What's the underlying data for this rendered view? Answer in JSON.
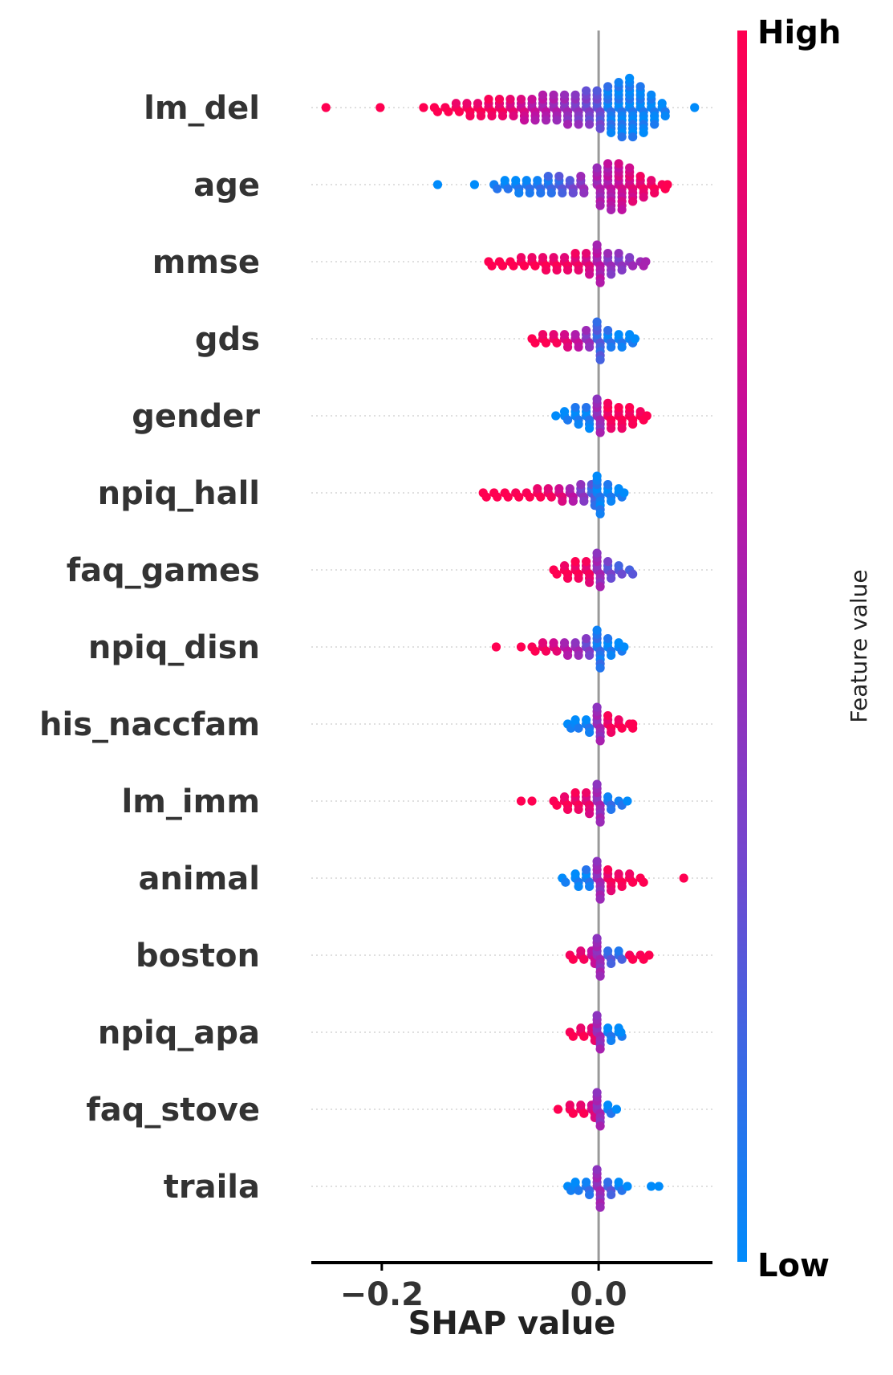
{
  "chart_data": {
    "type": "scatter",
    "subtype": "shap-beeswarm-summary",
    "xlabel": "SHAP value",
    "xlim": [
      -0.265,
      0.105
    ],
    "xticks": [
      -0.2,
      0.0
    ],
    "xtick_labels": [
      "−0.2",
      "0.0"
    ],
    "zero_line": 0.0,
    "colorbar": {
      "label": "Feature value",
      "high_label": "High",
      "low_label": "Low",
      "colors": [
        "#008bfb",
        "#7446ce",
        "#c10fa0",
        "#ff0051"
      ]
    },
    "features": [
      {
        "name": "lm_del",
        "values": [
          -0.25,
          -0.2,
          -0.16,
          -0.15,
          -0.14,
          -0.13,
          -0.12,
          -0.11,
          -0.1,
          -0.09,
          -0.08,
          -0.07,
          -0.06,
          -0.05,
          -0.04,
          -0.03,
          -0.02,
          -0.01,
          0.0,
          0.01,
          0.02,
          0.03,
          0.04,
          0.05,
          0.06,
          0.09
        ],
        "counts": [
          1,
          1,
          1,
          2,
          2,
          3,
          4,
          4,
          5,
          5,
          5,
          6,
          6,
          7,
          7,
          8,
          8,
          9,
          10,
          12,
          14,
          15,
          12,
          8,
          4,
          1
        ],
        "color_levels": [
          1.0,
          1.0,
          1.0,
          1.0,
          0.98,
          0.96,
          0.95,
          0.94,
          0.92,
          0.9,
          0.82,
          0.75,
          0.65,
          0.6,
          0.55,
          0.48,
          0.42,
          0.35,
          0.3,
          0.08,
          0.05,
          0.04,
          0.03,
          0.02,
          0.02,
          0.0
        ]
      },
      {
        "name": "age",
        "values": [
          -0.147,
          -0.113,
          -0.095,
          -0.085,
          -0.075,
          -0.065,
          -0.055,
          -0.045,
          -0.035,
          -0.025,
          -0.015,
          0.0,
          0.01,
          0.02,
          0.03,
          0.04,
          0.05,
          0.06,
          0.065
        ],
        "counts": [
          1,
          1,
          2,
          3,
          4,
          4,
          4,
          5,
          5,
          4,
          5,
          10,
          12,
          12,
          9,
          6,
          4,
          2,
          1
        ],
        "color_levels": [
          0.0,
          0.0,
          0.05,
          0.05,
          0.05,
          0.08,
          0.1,
          0.12,
          0.2,
          0.3,
          0.45,
          0.55,
          0.62,
          0.72,
          0.8,
          0.88,
          0.93,
          0.97,
          1.0
        ]
      },
      {
        "name": "mmse",
        "values": [
          -0.1,
          -0.09,
          -0.08,
          -0.07,
          -0.06,
          -0.05,
          -0.04,
          -0.03,
          -0.02,
          -0.01,
          0.0,
          0.01,
          0.02,
          0.03,
          0.04,
          0.045
        ],
        "counts": [
          2,
          2,
          2,
          3,
          3,
          4,
          4,
          4,
          5,
          6,
          10,
          6,
          5,
          3,
          2,
          1
        ],
        "color_levels": [
          1.0,
          1.0,
          1.0,
          0.98,
          0.97,
          0.95,
          0.93,
          0.9,
          0.88,
          0.8,
          0.6,
          0.45,
          0.4,
          0.45,
          0.5,
          0.55
        ]
      },
      {
        "name": "gds",
        "values": [
          -0.06,
          -0.05,
          -0.04,
          -0.03,
          -0.02,
          -0.01,
          0.0,
          0.01,
          0.02,
          0.03,
          0.035
        ],
        "counts": [
          2,
          3,
          3,
          4,
          4,
          5,
          10,
          5,
          4,
          3,
          1
        ],
        "color_levels": [
          1.0,
          0.97,
          0.92,
          0.82,
          0.65,
          0.45,
          0.2,
          0.08,
          0.04,
          0.02,
          0.0
        ]
      },
      {
        "name": "gender",
        "values": [
          -0.038,
          -0.03,
          -0.02,
          -0.01,
          0.0,
          0.01,
          0.02,
          0.03,
          0.04,
          0.046
        ],
        "counts": [
          1,
          3,
          5,
          6,
          9,
          7,
          6,
          5,
          3,
          1
        ],
        "color_levels": [
          0.0,
          0.02,
          0.03,
          0.05,
          0.5,
          0.95,
          0.97,
          0.98,
          1.0,
          1.0
        ]
      },
      {
        "name": "npiq_hall",
        "values": [
          -0.105,
          -0.095,
          -0.085,
          -0.075,
          -0.065,
          -0.055,
          -0.045,
          -0.035,
          -0.025,
          -0.015,
          -0.005,
          0.0,
          0.01,
          0.02,
          0.025
        ],
        "counts": [
          2,
          2,
          2,
          2,
          2,
          3,
          3,
          4,
          4,
          5,
          6,
          10,
          5,
          3,
          1
        ],
        "color_levels": [
          1.0,
          1.0,
          1.0,
          0.97,
          0.97,
          0.95,
          0.9,
          0.8,
          0.6,
          0.4,
          0.2,
          0.05,
          0.03,
          0.02,
          0.0
        ]
      },
      {
        "name": "faq_games",
        "values": [
          -0.04,
          -0.03,
          -0.02,
          -0.01,
          0.0,
          0.01,
          0.02,
          0.03
        ],
        "counts": [
          2,
          4,
          5,
          6,
          9,
          5,
          3,
          2
        ],
        "color_levels": [
          1.0,
          0.97,
          0.95,
          0.9,
          0.5,
          0.3,
          0.25,
          0.2
        ]
      },
      {
        "name": "npiq_disn",
        "values": [
          -0.093,
          -0.07,
          -0.06,
          -0.05,
          -0.04,
          -0.03,
          -0.02,
          -0.01,
          0.0,
          0.01,
          0.02,
          0.025
        ],
        "counts": [
          1,
          1,
          2,
          3,
          3,
          4,
          4,
          5,
          10,
          5,
          3,
          1
        ],
        "color_levels": [
          1.0,
          1.0,
          0.97,
          0.9,
          0.8,
          0.6,
          0.5,
          0.35,
          0.1,
          0.03,
          0.02,
          0.0
        ]
      },
      {
        "name": "his_naccfam",
        "values": [
          -0.027,
          -0.02,
          -0.01,
          0.0,
          0.01,
          0.02,
          0.03,
          0.033
        ],
        "counts": [
          2,
          3,
          4,
          9,
          5,
          3,
          2,
          1
        ],
        "color_levels": [
          0.0,
          0.02,
          0.05,
          0.5,
          0.92,
          0.97,
          0.98,
          1.0
        ]
      },
      {
        "name": "lm_imm",
        "values": [
          -0.07,
          -0.06,
          -0.04,
          -0.03,
          -0.02,
          -0.01,
          0.0,
          0.01,
          0.02,
          0.028
        ],
        "counts": [
          1,
          1,
          2,
          4,
          5,
          6,
          10,
          4,
          2,
          1
        ],
        "color_levels": [
          1.0,
          1.0,
          0.98,
          0.95,
          0.92,
          0.85,
          0.5,
          0.1,
          0.05,
          0.0
        ]
      },
      {
        "name": "animal",
        "values": [
          -0.032,
          -0.02,
          -0.01,
          0.0,
          0.01,
          0.02,
          0.03,
          0.04,
          0.08
        ],
        "counts": [
          2,
          4,
          5,
          10,
          6,
          4,
          3,
          2,
          1
        ],
        "color_levels": [
          0.0,
          0.02,
          0.05,
          0.5,
          0.92,
          0.96,
          0.98,
          1.0,
          1.0
        ]
      },
      {
        "name": "boston",
        "values": [
          -0.025,
          -0.015,
          -0.005,
          0.0,
          0.01,
          0.02,
          0.03,
          0.04,
          0.048
        ],
        "counts": [
          2,
          3,
          4,
          10,
          4,
          3,
          2,
          2,
          1
        ],
        "color_levels": [
          0.95,
          0.9,
          0.7,
          0.5,
          0.2,
          0.15,
          0.95,
          0.97,
          1.0
        ]
      },
      {
        "name": "npiq_apa",
        "values": [
          -0.025,
          -0.015,
          -0.005,
          0.0,
          0.01,
          0.02,
          0.022
        ],
        "counts": [
          2,
          3,
          4,
          9,
          4,
          3,
          1
        ],
        "color_levels": [
          0.97,
          0.95,
          0.9,
          0.5,
          0.05,
          0.02,
          0.0
        ]
      },
      {
        "name": "faq_stove",
        "values": [
          -0.036,
          -0.025,
          -0.015,
          -0.005,
          0.0,
          0.01,
          0.018
        ],
        "counts": [
          1,
          3,
          3,
          4,
          9,
          3,
          1
        ],
        "color_levels": [
          1.0,
          0.97,
          0.93,
          0.8,
          0.5,
          0.05,
          0.0
        ]
      },
      {
        "name": "traila",
        "values": [
          -0.027,
          -0.02,
          -0.01,
          0.0,
          0.01,
          0.02,
          0.028,
          0.05,
          0.057
        ],
        "counts": [
          2,
          3,
          4,
          10,
          4,
          3,
          1,
          1,
          1
        ],
        "color_levels": [
          0.0,
          0.02,
          0.1,
          0.5,
          0.2,
          0.05,
          0.0,
          0.0,
          0.0
        ]
      }
    ]
  }
}
